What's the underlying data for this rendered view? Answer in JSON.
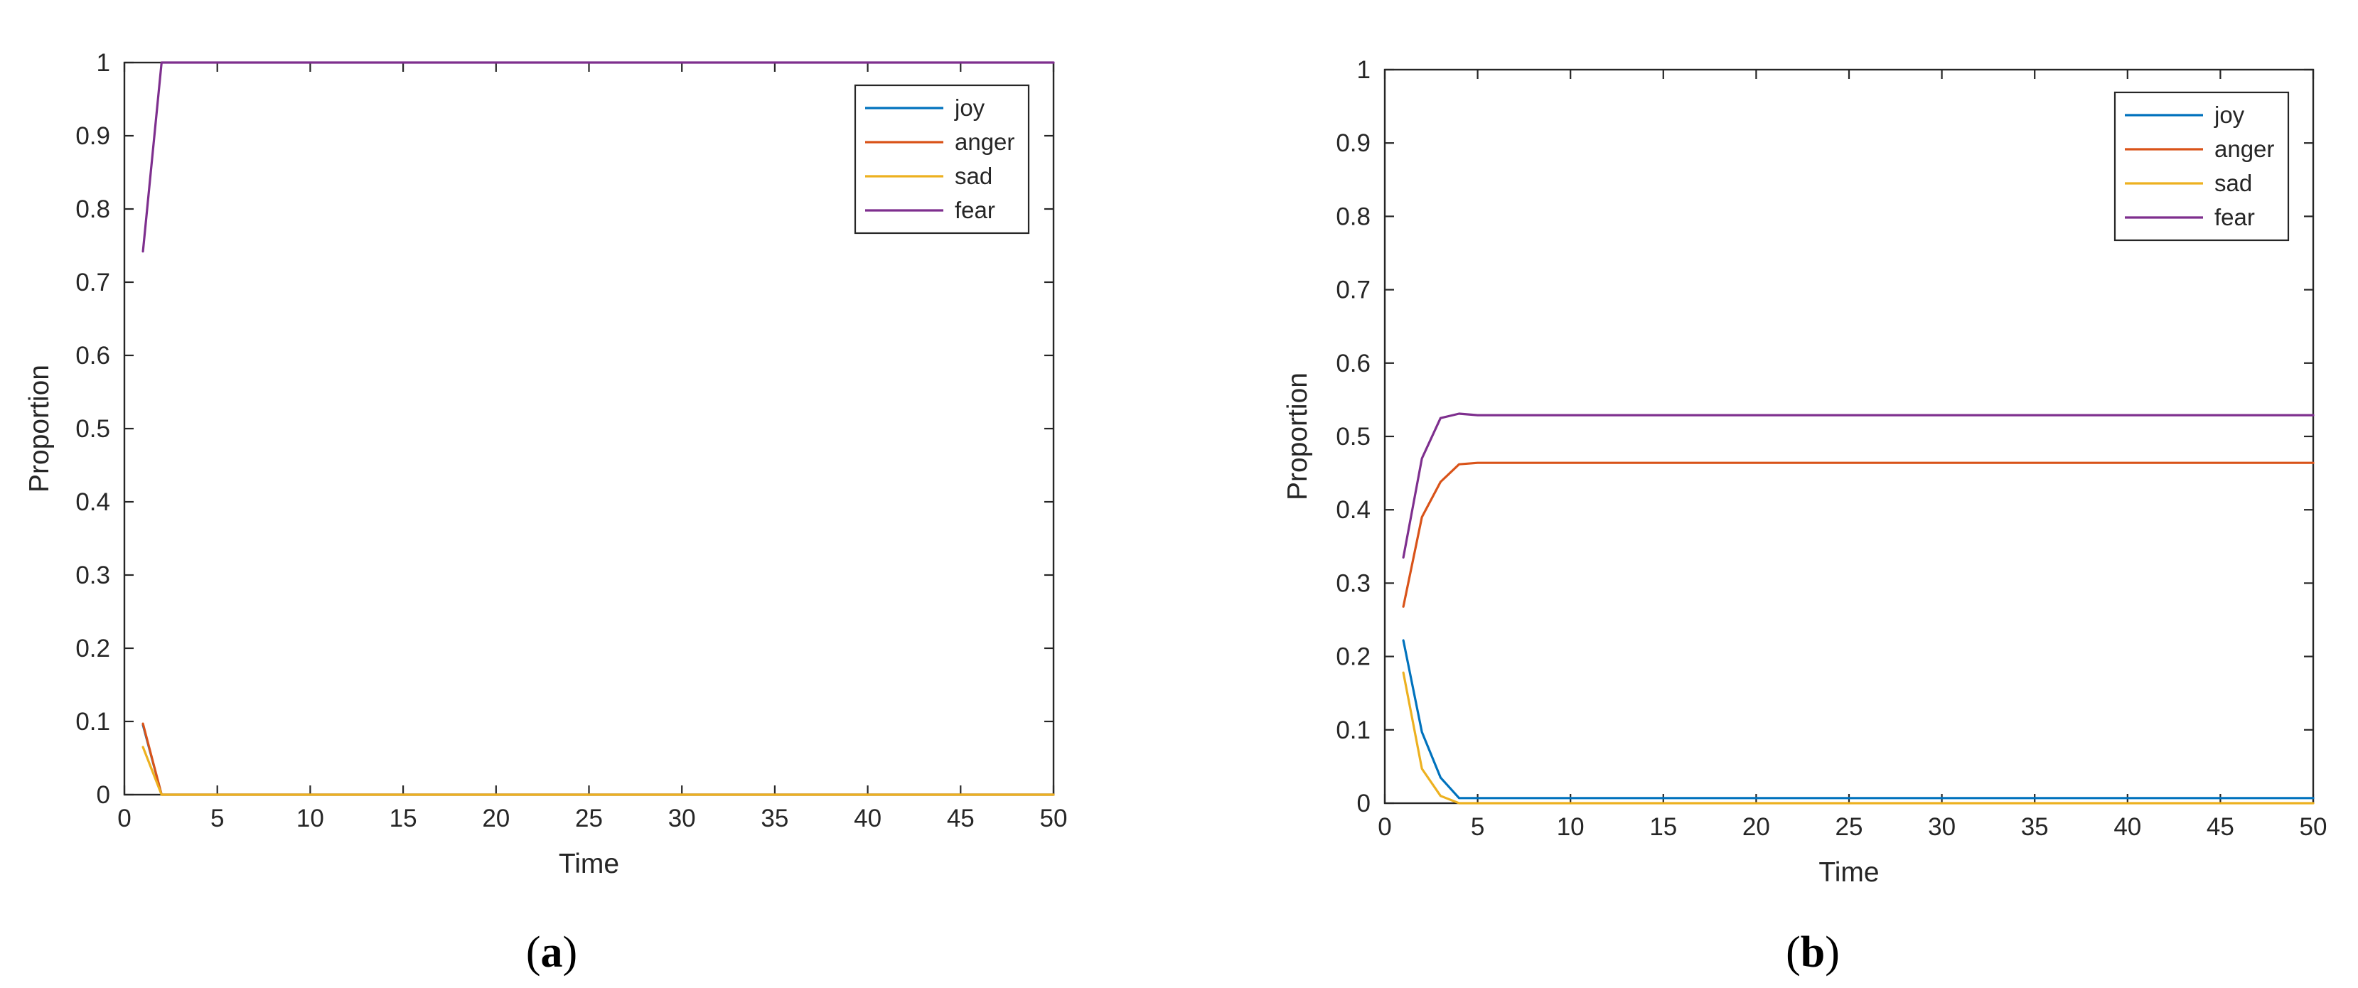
{
  "colors": {
    "joy": "#0072BD",
    "anger": "#D95319",
    "sad": "#EDB120",
    "fear": "#7E2F8E",
    "axis": "#262626"
  },
  "chart_data": [
    {
      "type": "line",
      "panel": "(a)",
      "panel_open": "(",
      "panel_letter": "a",
      "panel_close": ")",
      "xlabel": "Time",
      "ylabel": "Proportion",
      "xlim": [
        0,
        50
      ],
      "ylim": [
        0,
        1
      ],
      "xticks": [
        0,
        5,
        10,
        15,
        20,
        25,
        30,
        35,
        40,
        45,
        50
      ],
      "xtick_labels": [
        "0",
        "5",
        "10",
        "15",
        "20",
        "25",
        "30",
        "35",
        "40",
        "45",
        "50"
      ],
      "yticks": [
        0,
        0.1,
        0.2,
        0.3,
        0.4,
        0.5,
        0.6,
        0.7,
        0.8,
        0.9,
        1
      ],
      "ytick_labels": [
        "0",
        "0.1",
        "0.2",
        "0.3",
        "0.4",
        "0.5",
        "0.6",
        "0.7",
        "0.8",
        "0.9",
        "1"
      ],
      "legend_position": "top-right",
      "grid": false,
      "series": [
        {
          "name": "joy",
          "color_key": "joy",
          "x": [
            1,
            2,
            3,
            50
          ],
          "y": [
            0.095,
            0.0,
            0.0,
            0.0
          ]
        },
        {
          "name": "anger",
          "color_key": "anger",
          "x": [
            1,
            2,
            3,
            50
          ],
          "y": [
            0.097,
            0.0,
            0.0,
            0.0
          ]
        },
        {
          "name": "sad",
          "color_key": "sad",
          "x": [
            1,
            2,
            3,
            50
          ],
          "y": [
            0.065,
            0.0,
            0.0,
            0.0
          ]
        },
        {
          "name": "fear",
          "color_key": "fear",
          "x": [
            1,
            2,
            3,
            50
          ],
          "y": [
            0.742,
            1.0,
            1.0,
            1.0
          ]
        }
      ]
    },
    {
      "type": "line",
      "panel": "(b)",
      "panel_open": "(",
      "panel_letter": "b",
      "panel_close": ")",
      "xlabel": "Time",
      "ylabel": "Proportion",
      "xlim": [
        0,
        50
      ],
      "ylim": [
        0,
        1
      ],
      "xticks": [
        0,
        5,
        10,
        15,
        20,
        25,
        30,
        35,
        40,
        45,
        50
      ],
      "xtick_labels": [
        "0",
        "5",
        "10",
        "15",
        "20",
        "25",
        "30",
        "35",
        "40",
        "45",
        "50"
      ],
      "yticks": [
        0,
        0.1,
        0.2,
        0.3,
        0.4,
        0.5,
        0.6,
        0.7,
        0.8,
        0.9,
        1
      ],
      "ytick_labels": [
        "0",
        "0.1",
        "0.2",
        "0.3",
        "0.4",
        "0.5",
        "0.6",
        "0.7",
        "0.8",
        "0.9",
        "1"
      ],
      "legend_position": "top-right",
      "grid": false,
      "series": [
        {
          "name": "joy",
          "color_key": "joy",
          "x": [
            1,
            2,
            3,
            4,
            5,
            50
          ],
          "y": [
            0.222,
            0.097,
            0.035,
            0.007,
            0.007,
            0.007
          ]
        },
        {
          "name": "anger",
          "color_key": "anger",
          "x": [
            1,
            2,
            3,
            4,
            5,
            50
          ],
          "y": [
            0.268,
            0.39,
            0.438,
            0.462,
            0.464,
            0.464
          ]
        },
        {
          "name": "sad",
          "color_key": "sad",
          "x": [
            1,
            2,
            3,
            4,
            5,
            50
          ],
          "y": [
            0.178,
            0.047,
            0.01,
            0.0,
            0.0,
            0.0
          ]
        },
        {
          "name": "fear",
          "color_key": "fear",
          "x": [
            1,
            2,
            3,
            4,
            5,
            50
          ],
          "y": [
            0.335,
            0.47,
            0.525,
            0.531,
            0.529,
            0.529
          ]
        }
      ]
    }
  ]
}
